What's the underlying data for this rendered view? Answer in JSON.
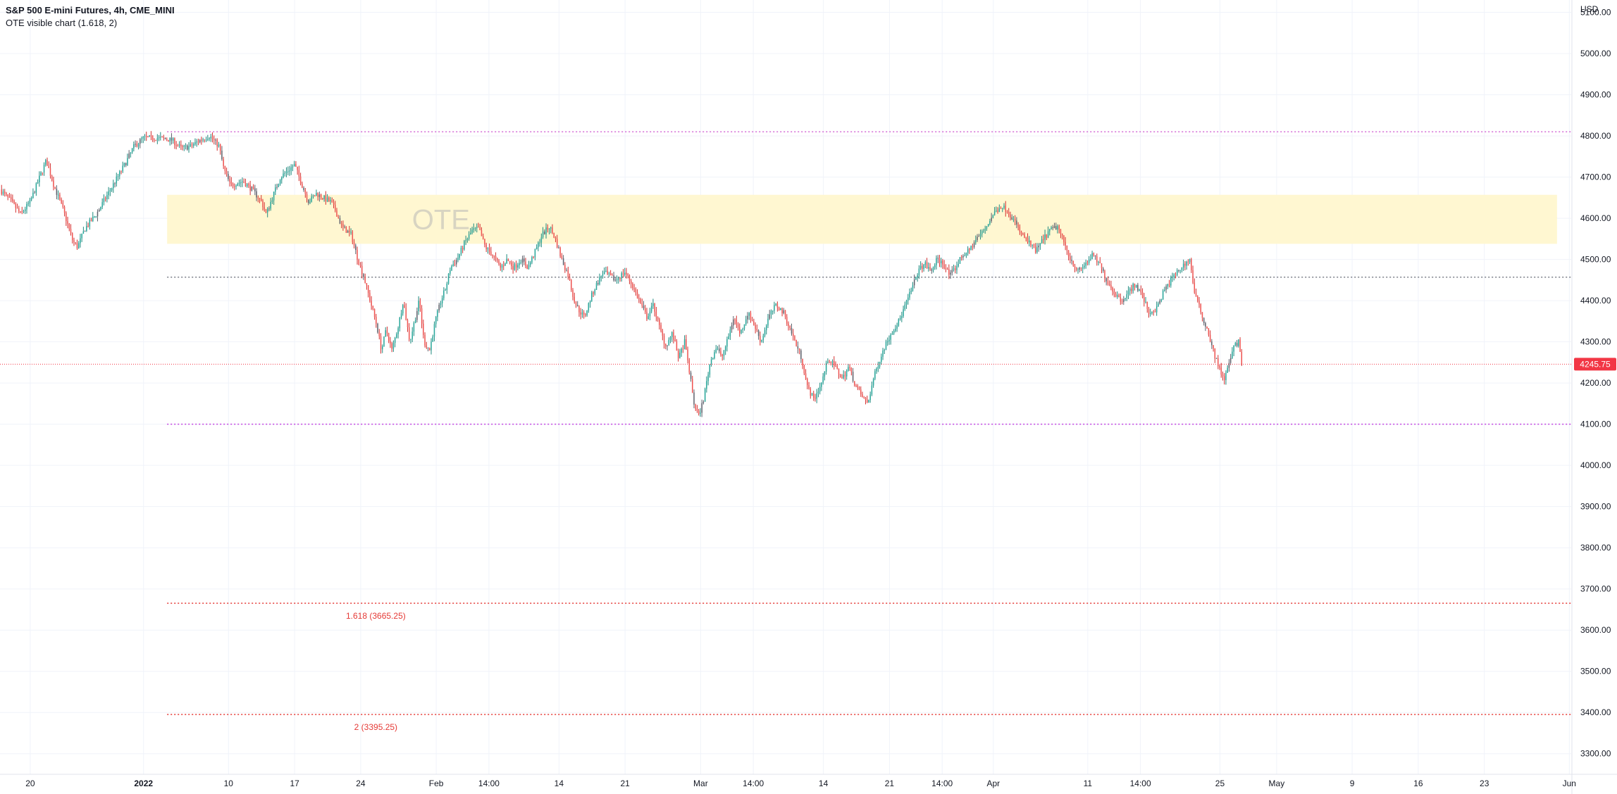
{
  "header": {
    "symbol_label": "S&P 500 E-mini Futures, 4h, CME_MINI",
    "indicator_label": "OTE visible chart (1.618, 2)"
  },
  "chart_data": {
    "type": "candlestick",
    "currency_label": "USD",
    "y_range": [
      3250,
      5130
    ],
    "y_ticks": [
      3300,
      3400,
      3500,
      3600,
      3700,
      3800,
      3900,
      4000,
      4100,
      4200,
      4300,
      4400,
      4500,
      4600,
      4700,
      4800,
      4900,
      5000,
      5100
    ],
    "y_tick_labels": [
      "3300.00",
      "3400.00",
      "3500.00",
      "3600.00",
      "3700.00",
      "3800.00",
      "3900.00",
      "4000.00",
      "4100.00",
      "4200.00",
      "4300.00",
      "4400.00",
      "4500.00",
      "4600.00",
      "4700.00",
      "4800.00",
      "4900.00",
      "5000.00",
      "5100.00"
    ],
    "x_range_days": [
      -15.2,
      151.2
    ],
    "x_ticks": [
      {
        "label": "20",
        "day": -12,
        "bold": false
      },
      {
        "label": "2022",
        "day": 0,
        "bold": true
      },
      {
        "label": "10",
        "day": 9,
        "bold": false
      },
      {
        "label": "17",
        "day": 16,
        "bold": false
      },
      {
        "label": "24",
        "day": 23,
        "bold": false
      },
      {
        "label": "Feb",
        "day": 31,
        "bold": false
      },
      {
        "label": "14:00",
        "day": 36.58,
        "bold": false
      },
      {
        "label": "14",
        "day": 44,
        "bold": false
      },
      {
        "label": "21",
        "day": 51,
        "bold": false
      },
      {
        "label": "Mar",
        "day": 59,
        "bold": false
      },
      {
        "label": "14:00",
        "day": 64.58,
        "bold": false
      },
      {
        "label": "14",
        "day": 72,
        "bold": false
      },
      {
        "label": "21",
        "day": 79,
        "bold": false
      },
      {
        "label": "14:00",
        "day": 84.58,
        "bold": false
      },
      {
        "label": "Apr",
        "day": 90,
        "bold": false
      },
      {
        "label": "11",
        "day": 100,
        "bold": false
      },
      {
        "label": "14:00",
        "day": 105.58,
        "bold": false
      },
      {
        "label": "25",
        "day": 114,
        "bold": false
      },
      {
        "label": "May",
        "day": 120,
        "bold": false
      },
      {
        "label": "9",
        "day": 128,
        "bold": false
      },
      {
        "label": "16",
        "day": 135,
        "bold": false
      },
      {
        "label": "23",
        "day": 142,
        "bold": false
      },
      {
        "label": "Jun",
        "day": 151,
        "bold": false
      }
    ],
    "price_path": [
      [
        -15.2,
        4670
      ],
      [
        -14.0,
        4640
      ],
      [
        -13.0,
        4610
      ],
      [
        -12.0,
        4640
      ],
      [
        -11.0,
        4700
      ],
      [
        -10.3,
        4740
      ],
      [
        -9.5,
        4680
      ],
      [
        -8.5,
        4620
      ],
      [
        -7.5,
        4545
      ],
      [
        -7.0,
        4530
      ],
      [
        -6.2,
        4575
      ],
      [
        -5.0,
        4610
      ],
      [
        -4.0,
        4650
      ],
      [
        -3.0,
        4690
      ],
      [
        -2.0,
        4730
      ],
      [
        -1.0,
        4775
      ],
      [
        0.0,
        4795
      ],
      [
        1.5,
        4795
      ],
      [
        3.0,
        4790
      ],
      [
        4.0,
        4770
      ],
      [
        5.0,
        4775
      ],
      [
        6.0,
        4790
      ],
      [
        7.0,
        4800
      ],
      [
        8.0,
        4775
      ],
      [
        8.5,
        4720
      ],
      [
        9.2,
        4680
      ],
      [
        10.5,
        4690
      ],
      [
        11.5,
        4670
      ],
      [
        12.5,
        4640
      ],
      [
        13.0,
        4610
      ],
      [
        13.8,
        4660
      ],
      [
        14.5,
        4700
      ],
      [
        15.5,
        4720
      ],
      [
        16.0,
        4730
      ],
      [
        16.8,
        4680
      ],
      [
        17.5,
        4640
      ],
      [
        18.3,
        4660
      ],
      [
        19.0,
        4650
      ],
      [
        19.8,
        4640
      ],
      [
        20.3,
        4620
      ],
      [
        21.0,
        4580
      ],
      [
        22.0,
        4560
      ],
      [
        22.7,
        4500
      ],
      [
        23.3,
        4460
      ],
      [
        24.0,
        4400
      ],
      [
        24.7,
        4340
      ],
      [
        25.2,
        4280
      ],
      [
        25.7,
        4330
      ],
      [
        26.3,
        4280
      ],
      [
        27.0,
        4340
      ],
      [
        27.5,
        4400
      ],
      [
        28.2,
        4300
      ],
      [
        28.7,
        4350
      ],
      [
        29.2,
        4400
      ],
      [
        29.7,
        4300
      ],
      [
        30.3,
        4280
      ],
      [
        30.9,
        4350
      ],
      [
        31.5,
        4400
      ],
      [
        32.0,
        4430
      ],
      [
        32.5,
        4480
      ],
      [
        33.2,
        4500
      ],
      [
        34.0,
        4540
      ],
      [
        34.8,
        4570
      ],
      [
        35.5,
        4575
      ],
      [
        36.2,
        4530
      ],
      [
        37.0,
        4510
      ],
      [
        37.8,
        4480
      ],
      [
        38.5,
        4500
      ],
      [
        39.2,
        4480
      ],
      [
        40.0,
        4500
      ],
      [
        40.7,
        4480
      ],
      [
        41.5,
        4520
      ],
      [
        42.2,
        4560
      ],
      [
        43.0,
        4580
      ],
      [
        43.6,
        4550
      ],
      [
        44.3,
        4500
      ],
      [
        45.0,
        4460
      ],
      [
        45.5,
        4410
      ],
      [
        46.0,
        4380
      ],
      [
        46.7,
        4360
      ],
      [
        47.4,
        4410
      ],
      [
        48.0,
        4440
      ],
      [
        48.7,
        4470
      ],
      [
        49.3,
        4460
      ],
      [
        50.0,
        4450
      ],
      [
        51.0,
        4470
      ],
      [
        51.7,
        4440
      ],
      [
        52.5,
        4400
      ],
      [
        53.3,
        4360
      ],
      [
        54.0,
        4390
      ],
      [
        54.7,
        4330
      ],
      [
        55.3,
        4290
      ],
      [
        56.0,
        4320
      ],
      [
        56.7,
        4260
      ],
      [
        57.3,
        4300
      ],
      [
        57.8,
        4230
      ],
      [
        58.3,
        4150
      ],
      [
        58.8,
        4120
      ],
      [
        59.3,
        4160
      ],
      [
        60.0,
        4250
      ],
      [
        60.7,
        4290
      ],
      [
        61.2,
        4260
      ],
      [
        61.8,
        4300
      ],
      [
        62.5,
        4360
      ],
      [
        63.2,
        4320
      ],
      [
        64.0,
        4370
      ],
      [
        64.7,
        4340
      ],
      [
        65.4,
        4300
      ],
      [
        66.2,
        4360
      ],
      [
        67.0,
        4390
      ],
      [
        67.8,
        4370
      ],
      [
        68.5,
        4330
      ],
      [
        69.0,
        4300
      ],
      [
        69.7,
        4260
      ],
      [
        70.3,
        4190
      ],
      [
        71.0,
        4160
      ],
      [
        71.8,
        4200
      ],
      [
        72.5,
        4260
      ],
      [
        73.2,
        4240
      ],
      [
        74.0,
        4210
      ],
      [
        74.7,
        4240
      ],
      [
        75.3,
        4200
      ],
      [
        76.0,
        4170
      ],
      [
        76.7,
        4150
      ],
      [
        77.3,
        4210
      ],
      [
        78.0,
        4260
      ],
      [
        78.7,
        4300
      ],
      [
        79.4,
        4330
      ],
      [
        80.0,
        4350
      ],
      [
        80.7,
        4390
      ],
      [
        81.4,
        4430
      ],
      [
        82.0,
        4470
      ],
      [
        82.7,
        4490
      ],
      [
        83.4,
        4470
      ],
      [
        84.0,
        4500
      ],
      [
        84.7,
        4490
      ],
      [
        85.4,
        4460
      ],
      [
        86.0,
        4480
      ],
      [
        86.7,
        4510
      ],
      [
        87.4,
        4520
      ],
      [
        88.2,
        4550
      ],
      [
        89.0,
        4570
      ],
      [
        90.0,
        4610
      ],
      [
        90.8,
        4630
      ],
      [
        91.5,
        4620
      ],
      [
        92.3,
        4590
      ],
      [
        93.0,
        4560
      ],
      [
        93.8,
        4540
      ],
      [
        94.5,
        4520
      ],
      [
        95.3,
        4550
      ],
      [
        96.0,
        4570
      ],
      [
        96.8,
        4580
      ],
      [
        97.5,
        4540
      ],
      [
        98.2,
        4500
      ],
      [
        99.0,
        4470
      ],
      [
        99.8,
        4490
      ],
      [
        100.5,
        4510
      ],
      [
        101.2,
        4490
      ],
      [
        102.0,
        4450
      ],
      [
        102.8,
        4420
      ],
      [
        103.5,
        4400
      ],
      [
        104.3,
        4420
      ],
      [
        105.0,
        4440
      ],
      [
        105.8,
        4410
      ],
      [
        106.5,
        4370
      ],
      [
        107.3,
        4380
      ],
      [
        108.0,
        4420
      ],
      [
        108.8,
        4450
      ],
      [
        109.5,
        4470
      ],
      [
        110.3,
        4490
      ],
      [
        110.8,
        4500
      ],
      [
        111.3,
        4420
      ],
      [
        112.0,
        4370
      ],
      [
        112.8,
        4320
      ],
      [
        113.4,
        4270
      ],
      [
        114.0,
        4230
      ],
      [
        114.5,
        4210
      ],
      [
        115.0,
        4250
      ],
      [
        115.5,
        4290
      ],
      [
        116.0,
        4300
      ],
      [
        116.3,
        4245.75
      ]
    ],
    "annotations": {
      "last_price": 4245.75,
      "last_price_label": "4245.75",
      "ote_zone": {
        "label": "OTE",
        "top": 4657,
        "bottom": 4538,
        "start_day": 2.5,
        "end_day": 149.7
      },
      "levels": [
        {
          "name": "range-high",
          "price": 4810,
          "color": "#d46ad6",
          "start_day": 2.5
        },
        {
          "name": "midpoint",
          "price": 4457,
          "color": "#787b86",
          "start_day": 2.5
        },
        {
          "name": "range-low",
          "price": 4100,
          "color": "#c13fe0",
          "start_day": 2.5
        },
        {
          "name": "ext-1618",
          "price": 3665.25,
          "color": "#e53935",
          "start_day": 2.5,
          "label": "1.618 (3665.25)",
          "label_day": 24.6
        },
        {
          "name": "ext-2",
          "price": 3395.25,
          "color": "#e53935",
          "start_day": 2.5,
          "label": "2 (3395.25)",
          "label_day": 24.6
        }
      ]
    },
    "colors": {
      "up": "#26a69a",
      "down": "#ef5350",
      "wick_up": "#1e8a7f",
      "wick_down": "#d32f2f",
      "dark_candle": "#5d606b",
      "ote_fill": "#fff7d1",
      "ote_text": "#d8d4c2",
      "price_label_bg": "#f23645",
      "grid": "#f0f3fa",
      "axis_text": "#131722",
      "last_price_line": "#f23645"
    }
  }
}
